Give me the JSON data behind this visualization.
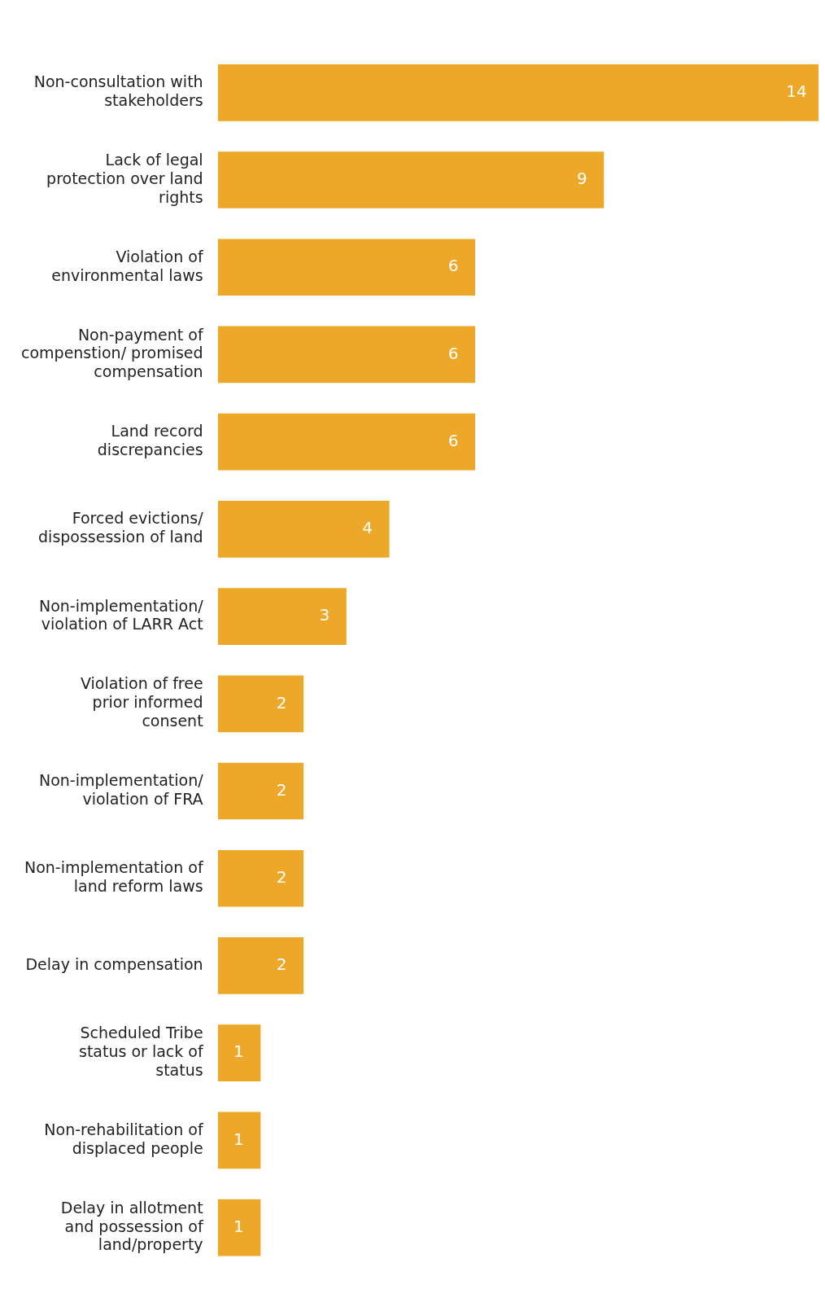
{
  "chart_data": {
    "type": "bar",
    "orientation": "horizontal",
    "categories": [
      "Non-consultation with stakeholders",
      "Lack of legal protection over land rights",
      "Violation of environmental laws",
      "Non-payment of compenstion/ promised compensation",
      "Land record discrepancies",
      "Forced evictions/ dispossession of land",
      "Non-implementation/ violation of LARR Act",
      "Violation of free prior informed consent",
      "Non-implementation/ violation of FRA",
      "Non-implementation of land reform laws",
      "Delay in compensation",
      "Scheduled Tribe status or lack of status",
      "Non-rehabilitation of displaced people",
      "Delay in allotment and possession of land/property"
    ],
    "values": [
      14,
      9,
      6,
      6,
      6,
      4,
      3,
      2,
      2,
      2,
      2,
      1,
      1,
      1
    ],
    "color": "#eda829",
    "data_labels": true,
    "grid": false,
    "legend": false
  }
}
